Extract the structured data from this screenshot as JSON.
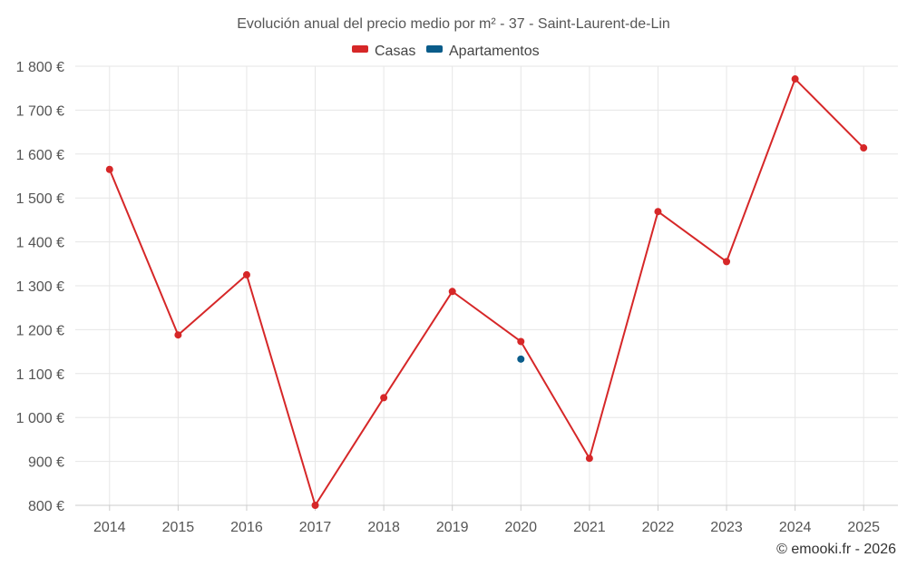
{
  "chart_data": {
    "type": "line",
    "title": "Evolución anual del precio medio por m² - 37 - Saint-Laurent-de-Lin",
    "categories": [
      "2014",
      "2015",
      "2016",
      "2017",
      "2018",
      "2019",
      "2020",
      "2021",
      "2022",
      "2023",
      "2024",
      "2025"
    ],
    "series": [
      {
        "name": "Casas",
        "color": "#d62728",
        "values": [
          1565,
          1188,
          1325,
          800,
          1045,
          1287,
          1173,
          907,
          1469,
          1355,
          1771,
          1614
        ]
      },
      {
        "name": "Apartamentos",
        "color": "#0a5c8a",
        "values": [
          null,
          null,
          null,
          null,
          null,
          null,
          1133,
          null,
          null,
          null,
          null,
          null
        ]
      }
    ],
    "ylim": [
      800,
      1800
    ],
    "yticks": [
      800,
      900,
      1000,
      1100,
      1200,
      1300,
      1400,
      1500,
      1600,
      1700,
      1800
    ],
    "ytick_labels": [
      "800 €",
      "900 €",
      "1 000 €",
      "1 100 €",
      "1 200 €",
      "1 300 €",
      "1 400 €",
      "1 500 €",
      "1 600 €",
      "1 700 €",
      "1 800 €"
    ],
    "grid": true,
    "legend_position": "top-center"
  },
  "credit": "© emooki.fr - 2026"
}
